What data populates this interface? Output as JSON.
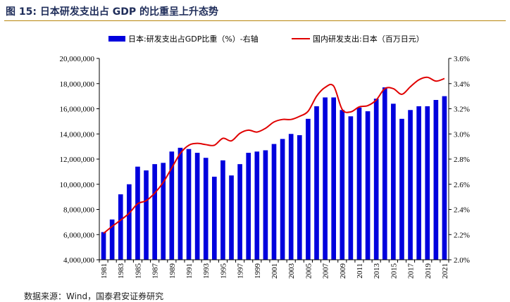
{
  "figure": {
    "title": "图 15:  日本研发支出占 GDP 的比重呈上升态势",
    "source": "数据来源：Wind，国泰君安证券研究"
  },
  "chart_data": {
    "type": "bar+line",
    "title": "图 15:  日本研发支出占 GDP 的比重呈上升态势",
    "categories": [
      1981,
      1982,
      1983,
      1984,
      1985,
      1986,
      1987,
      1988,
      1989,
      1990,
      1991,
      1992,
      1993,
      1994,
      1995,
      1996,
      1997,
      1998,
      1999,
      2000,
      2001,
      2002,
      2003,
      2004,
      2005,
      2006,
      2007,
      2008,
      2009,
      2010,
      2011,
      2012,
      2013,
      2014,
      2015,
      2016,
      2017,
      2018,
      2019,
      2020,
      2021
    ],
    "x_tick_labels": [
      "1981",
      "1983",
      "1985",
      "1987",
      "1989",
      "1991",
      "1993",
      "1995",
      "1997",
      "1999",
      "2001",
      "2003",
      "2005",
      "2007",
      "2009",
      "2011",
      "2013",
      "2015",
      "2017",
      "2019",
      "2021"
    ],
    "series": [
      {
        "name": "日本:研发支出占GDP比重（%）-右轴",
        "type": "bar",
        "axis": "right",
        "color": "#0000dd",
        "values": [
          2.22,
          2.32,
          2.52,
          2.6,
          2.74,
          2.71,
          2.76,
          2.77,
          2.86,
          2.89,
          2.88,
          2.85,
          2.81,
          2.66,
          2.79,
          2.67,
          2.76,
          2.85,
          2.86,
          2.87,
          2.92,
          2.96,
          3.0,
          2.99,
          3.12,
          3.22,
          3.29,
          3.29,
          3.19,
          3.14,
          3.21,
          3.18,
          3.28,
          3.37,
          3.24,
          3.12,
          3.19,
          3.22,
          3.22,
          3.27,
          3.3
        ]
      },
      {
        "name": "国内研发支出:日本（百万日元）",
        "type": "line",
        "axis": "left",
        "color": "#e00000",
        "values": [
          6100000,
          6650000,
          7150000,
          7700000,
          8450000,
          8700000,
          9300000,
          10150000,
          11300000,
          12450000,
          13100000,
          13250000,
          13150000,
          13100000,
          13650000,
          13450000,
          14050000,
          14300000,
          14150000,
          14450000,
          14950000,
          15150000,
          15150000,
          15400000,
          15800000,
          17000000,
          17700000,
          17800000,
          15950000,
          15750000,
          16150000,
          16250000,
          16700000,
          17600000,
          17600000,
          17150000,
          17750000,
          18300000,
          18500000,
          18200000,
          18400000
        ]
      }
    ],
    "left_axis": {
      "min": 4000000,
      "max": 20000000,
      "step": 2000000,
      "tick_labels": [
        "4,000,000",
        "6,000,000",
        "8,000,000",
        "10,000,000",
        "12,000,000",
        "14,000,000",
        "16,000,000",
        "18,000,000",
        "20,000,000"
      ]
    },
    "right_axis": {
      "min": 2.0,
      "max": 3.6,
      "step": 0.2,
      "tick_labels": [
        "2.0%",
        "2.2%",
        "2.4%",
        "2.6%",
        "2.8%",
        "3.0%",
        "3.2%",
        "3.4%",
        "3.6%"
      ]
    },
    "legend": {
      "position": "top"
    },
    "grid": false
  }
}
